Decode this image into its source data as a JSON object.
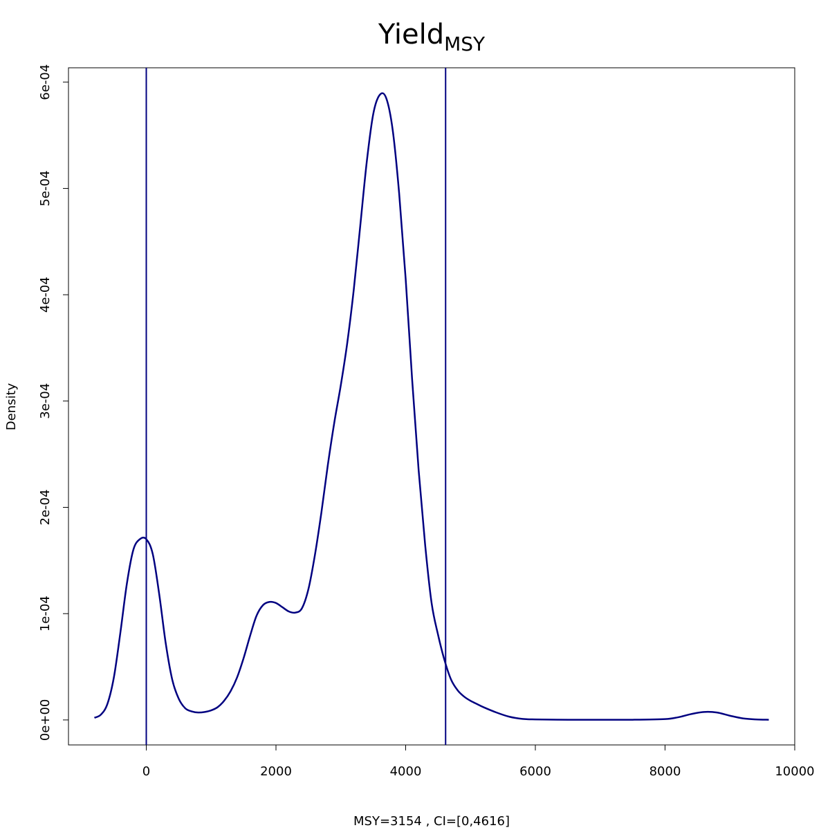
{
  "chart_data": {
    "type": "line",
    "title": "Yield",
    "title_subscript": "MSY",
    "xlabel": "MSY=3154 , CI=[0,4616]",
    "ylabel": "Density",
    "xlim": [
      -1200,
      10000
    ],
    "ylim": [
      -2.35e-05,
      0.0006135
    ],
    "x_ticks": [
      0,
      2000,
      4000,
      6000,
      8000,
      10000
    ],
    "x_tick_labels": [
      "0",
      "2000",
      "4000",
      "6000",
      "8000",
      "10000"
    ],
    "y_ticks": [
      0,
      0.0001,
      0.0002,
      0.0003,
      0.0004,
      0.0005,
      0.0006
    ],
    "y_tick_labels": [
      "0e+00",
      "1e-04",
      "2e-04",
      "3e-04",
      "4e-04",
      "5e-04",
      "6e-04"
    ],
    "grid": false,
    "line_color": "#000080",
    "vertical_lines": [
      0,
      4616
    ],
    "series": [
      {
        "x": [
          -800,
          -700,
          -600,
          -500,
          -400,
          -300,
          -200,
          -100,
          0,
          100,
          200,
          300,
          400,
          500,
          600,
          700,
          800,
          900,
          1000,
          1100,
          1200,
          1300,
          1400,
          1500,
          1600,
          1700,
          1800,
          1900,
          2000,
          2100,
          2200,
          2300,
          2400,
          2500,
          2600,
          2700,
          2800,
          2900,
          3000,
          3100,
          3200,
          3300,
          3400,
          3500,
          3600,
          3700,
          3800,
          3900,
          4000,
          4100,
          4200,
          4300,
          4400,
          4500,
          4600,
          4700,
          4800,
          4900,
          5000,
          5100,
          5200,
          5400,
          5600,
          5800,
          6000,
          6500,
          7000,
          7500,
          8000,
          8200,
          8400,
          8600,
          8800,
          9000,
          9200,
          9400,
          9600
        ],
        "y": [
          2e-06,
          5e-06,
          1.5e-05,
          4e-05,
          8.2e-05,
          0.000128,
          0.00016,
          0.00017,
          0.00017,
          0.000156,
          0.000118,
          7.2e-05,
          3.8e-05,
          2e-05,
          1.1e-05,
          8e-06,
          7e-06,
          7.5e-06,
          9e-06,
          1.2e-05,
          1.8e-05,
          2.7e-05,
          4e-05,
          5.8e-05,
          7.9e-05,
          9.8e-05,
          0.000108,
          0.000111,
          0.00011,
          0.000106,
          0.000102,
          0.000101,
          0.000105,
          0.000123,
          0.000155,
          0.000195,
          0.00024,
          0.00028,
          0.000315,
          0.000355,
          0.000405,
          0.000465,
          0.000525,
          0.00057,
          0.000588,
          0.000585,
          0.000555,
          0.000495,
          0.000415,
          0.00032,
          0.000235,
          0.000165,
          0.00011,
          8e-05,
          5.6e-05,
          3.8e-05,
          2.8e-05,
          2.2e-05,
          1.8e-05,
          1.5e-05,
          1.2e-05,
          7e-06,
          3e-06,
          1e-06,
          5e-07,
          2e-07,
          2e-07,
          2e-07,
          8e-07,
          2.5e-06,
          5.5e-06,
          7.5e-06,
          7e-06,
          4e-06,
          1.5e-06,
          5e-07,
          2e-07
        ]
      }
    ]
  }
}
